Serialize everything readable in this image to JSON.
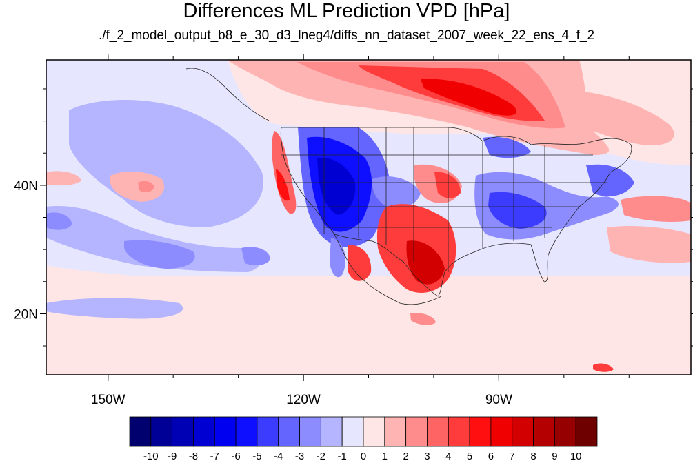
{
  "title": "Differences ML Prediction VPD [hPa]",
  "subtitle": "./f_2_model_output_b8_e_30_d3_lneg4/diffs_nn_dataset_2007_week_22_ens_4_f_2",
  "lon_ticks": [
    {
      "lon": -150,
      "label": "150W"
    },
    {
      "lon": -120,
      "label": "120W"
    },
    {
      "lon": -90,
      "label": "90W"
    }
  ],
  "lat_ticks": [
    {
      "lat": 40,
      "label": "40N"
    },
    {
      "lat": 20,
      "label": "20N"
    }
  ],
  "extent": {
    "lon_min": -159.5,
    "lon_max": -60.5,
    "lat_min": 10.5,
    "lat_max": 59.5
  },
  "colorbar": {
    "colors": [
      "#00006e",
      "#000096",
      "#0000b4",
      "#0000d2",
      "#0000f0",
      "#0f0fff",
      "#3c3cff",
      "#6464ff",
      "#8c8cff",
      "#b4b4ff",
      "#e6e6ff",
      "#ffe6e6",
      "#ffb4b4",
      "#ff8c8c",
      "#ff6464",
      "#ff3c3c",
      "#ff0f0f",
      "#f00000",
      "#d20000",
      "#b40000",
      "#960000",
      "#6e0000"
    ],
    "labels": [
      "-10",
      "-9",
      "-8",
      "-7",
      "-6",
      "-5",
      "-4",
      "-3",
      "-2",
      "-1",
      "0",
      "1",
      "2",
      "3",
      "4",
      "5",
      "6",
      "7",
      "8",
      "9",
      "10"
    ]
  }
}
